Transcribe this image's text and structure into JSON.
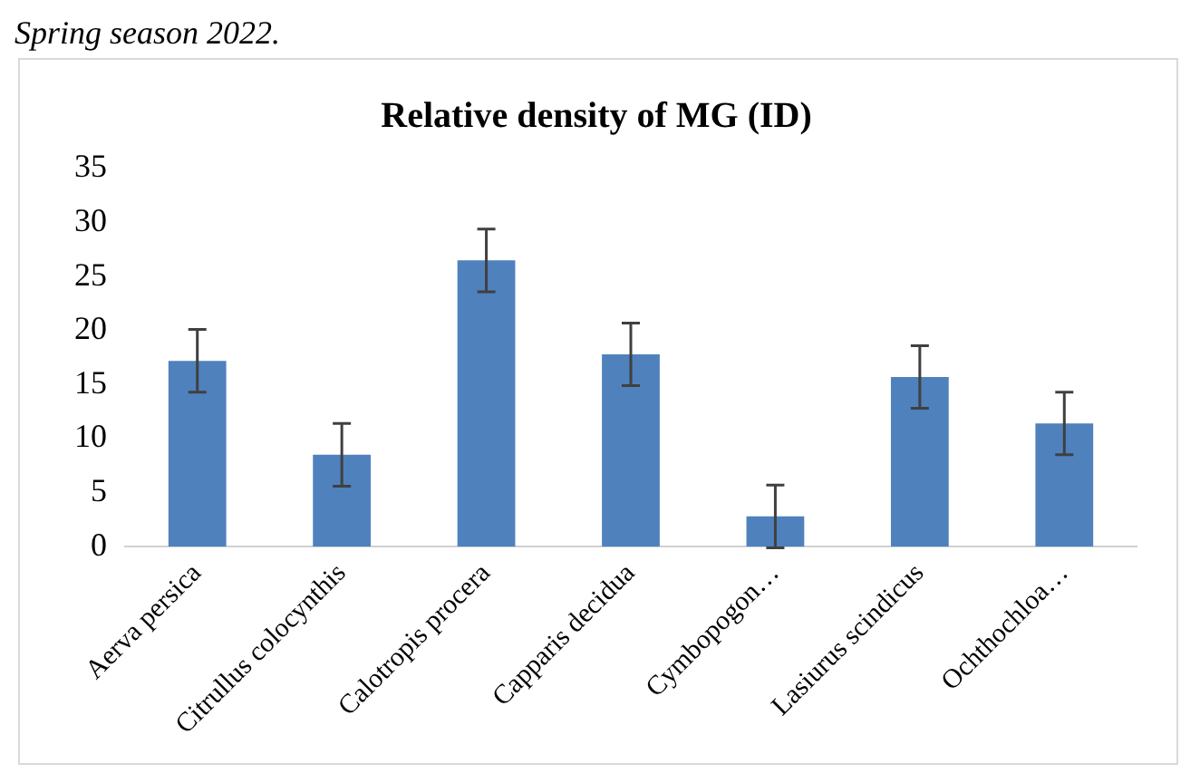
{
  "chart_data": {
    "type": "bar",
    "title": "Relative density of MG (ID)",
    "annotations": [
      "Spring season 2022."
    ],
    "categories": [
      "Aerva persica",
      "Citrullus colocynthis",
      "Calotropis procera",
      "Capparis decidua",
      "Cymbopogon…",
      "Lasiurus scindicus",
      "Ochthochloa…"
    ],
    "values": [
      17.2,
      8.5,
      26.5,
      17.8,
      2.8,
      15.7,
      11.4
    ],
    "errors": [
      2.9,
      2.9,
      2.9,
      2.9,
      2.9,
      2.9,
      2.9
    ],
    "color": "#4f81bd",
    "ylim": [
      0,
      35
    ],
    "yticks": [
      0,
      5,
      10,
      15,
      20,
      25,
      30,
      35
    ],
    "grid": false,
    "legend": false
  }
}
